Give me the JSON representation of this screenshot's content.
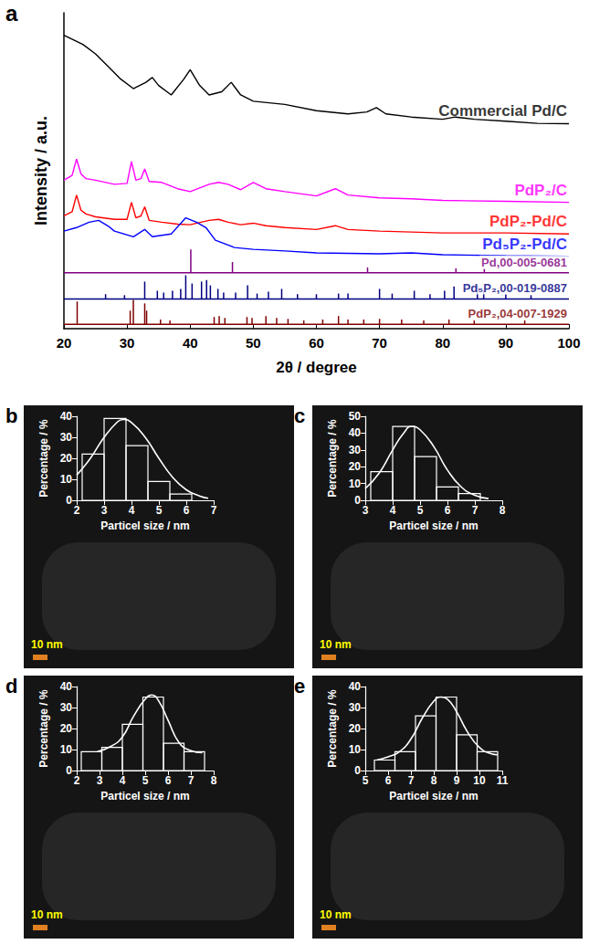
{
  "chart_data": [
    {
      "type": "line",
      "panel_label": "a",
      "xlabel": "2θ / degree",
      "ylabel": "Intensity / a.u.",
      "xlim": [
        20,
        100
      ],
      "xticks": [
        20,
        30,
        40,
        50,
        60,
        70,
        80,
        90,
        100
      ],
      "ylim": [
        0,
        100
      ],
      "tick_labels": "x",
      "series": [
        {
          "name": "Commercial Pd/C",
          "type": "line",
          "color": "#000000",
          "x": [
            20,
            23,
            25,
            27,
            29,
            31,
            33,
            34,
            35,
            37,
            39,
            40,
            41.5,
            43,
            45,
            46.5,
            48,
            50,
            55,
            60,
            65,
            68,
            69.5,
            71,
            75,
            80,
            82,
            85,
            90,
            95,
            100
          ],
          "values": [
            92.9,
            90,
            87,
            83,
            79,
            76,
            78,
            79.5,
            77,
            74,
            79,
            82,
            77,
            74,
            75,
            78,
            74,
            72,
            71,
            69,
            68,
            68.6,
            70,
            68,
            67,
            66.3,
            67,
            66.3,
            65.7,
            65,
            64.9
          ]
        },
        {
          "name": "PdP₂/C",
          "type": "line",
          "color": "#ff00ff",
          "x": [
            20,
            21.3,
            22,
            22.7,
            23.5,
            25,
            28,
            30,
            30.7,
            31.4,
            32.2,
            32.8,
            33.5,
            35.5,
            38,
            40,
            43,
            44.5,
            46,
            48,
            50,
            52,
            55,
            60,
            63,
            65,
            70,
            75,
            80,
            90,
            100
          ],
          "values": [
            47,
            48.5,
            53.7,
            49,
            47.5,
            47,
            45.7,
            46,
            52.9,
            47,
            47.5,
            50.6,
            46.6,
            46.3,
            44.3,
            43.4,
            45.7,
            46.3,
            45.7,
            44,
            46.3,
            44.3,
            43.4,
            42,
            44.3,
            42.3,
            41.4,
            41.1,
            40.6,
            40.3,
            40
          ]
        },
        {
          "name": "PdP₂-Pd/C",
          "type": "line",
          "color": "#ff0000",
          "x": [
            20,
            21.3,
            22,
            22.7,
            23.5,
            25,
            28,
            30,
            30.7,
            31.4,
            32.2,
            32.8,
            33.5,
            35.5,
            38,
            40,
            43,
            44.5,
            46,
            48,
            50,
            52,
            55,
            60,
            63,
            65,
            70,
            75,
            80,
            90,
            100
          ],
          "values": [
            35.7,
            37,
            42.3,
            37.5,
            36.3,
            35.4,
            34.6,
            34.6,
            40,
            35.1,
            35.7,
            38.6,
            34.3,
            33.7,
            33.1,
            32.9,
            34.3,
            34.6,
            33.7,
            32.9,
            33.4,
            32.6,
            32,
            31.4,
            32.6,
            31.4,
            30.9,
            30.6,
            30.3,
            30.3,
            30
          ]
        },
        {
          "name": "Pd₅P₂-Pd/C",
          "type": "line",
          "color": "#0000ff",
          "x": [
            20,
            22,
            24,
            25.5,
            27,
            28,
            31,
            32.8,
            34,
            37,
            39.3,
            41,
            42.5,
            44,
            47,
            50,
            55,
            60,
            70,
            75,
            80,
            90,
            100
          ],
          "values": [
            30.9,
            32,
            33.7,
            34.3,
            32.5,
            30.9,
            29.1,
            31.4,
            29.1,
            30,
            35.1,
            33.7,
            32,
            28,
            25.7,
            25.1,
            24.6,
            24,
            23.7,
            24,
            23.4,
            23.1,
            22.9
          ]
        },
        {
          "name": "Pd,00-005-0681",
          "type": "stick",
          "color": "#800080",
          "baseline": 17.7,
          "x": [
            40.1,
            46.7,
            68.1,
            82.1,
            86.6
          ],
          "values": [
            25.1,
            21.1,
            19.4,
            19.1,
            18.9
          ]
        },
        {
          "name": "Pd₅P₂,00-019-0887",
          "type": "stick",
          "color": "#000080",
          "baseline": 9.4,
          "x": [
            26.6,
            29.6,
            32.8,
            34.8,
            35.8,
            37.2,
            38.5,
            39.3,
            40.3,
            41.8,
            42.6,
            43.2,
            44.4,
            45.3,
            47.2,
            49.1,
            50.6,
            52.4,
            54.5,
            57,
            60,
            63.5,
            65,
            70,
            72,
            75.5,
            78,
            80.3,
            81.8,
            85.5,
            86.5,
            90,
            94
          ],
          "values": [
            10.9,
            10.6,
            14.9,
            12,
            11.4,
            12,
            12.6,
            16.9,
            14.3,
            14.9,
            15.4,
            13.7,
            12.6,
            11.4,
            11.4,
            13.7,
            11.1,
            11.7,
            12.6,
            10.9,
            10.9,
            11.1,
            11.1,
            12.6,
            11.1,
            12,
            10.9,
            12,
            13.4,
            13.7,
            12,
            10.9,
            10.6
          ]
        },
        {
          "name": "PdP₂,04-007-1929",
          "type": "stick",
          "color": "#800000",
          "baseline": 1.4,
          "x": [
            22.1,
            30.5,
            31,
            32.8,
            33.1,
            35.3,
            36.8,
            43.8,
            44.6,
            45.5,
            49,
            49.8,
            52,
            53.7,
            55.5,
            58,
            61,
            63.5,
            65,
            67.5,
            70,
            73.5,
            77,
            81,
            85,
            93
          ],
          "values": [
            8.6,
            5.7,
            9.1,
            8,
            5.7,
            2.9,
            2.6,
            3.7,
            4,
            3.4,
            3.7,
            3.4,
            4,
            3.4,
            3.1,
            2.6,
            2.9,
            4,
            2.9,
            2.9,
            3.1,
            2.9,
            2.6,
            2.9,
            2.6,
            2.6
          ]
        }
      ]
    },
    {
      "type": "histogram",
      "panel_label": "b",
      "xlabel": "Particel size / nm",
      "ylabel": "Percentage / %",
      "scale_bar": "10 nm",
      "color": "#ffffff",
      "xlim": [
        2,
        7
      ],
      "xticks": [
        2,
        3,
        4,
        5,
        6,
        7
      ],
      "ylim": [
        0,
        40
      ],
      "yticks": [
        0,
        10,
        20,
        30,
        40
      ],
      "bins": [
        2.2,
        3.0,
        3.8,
        4.6,
        5.4,
        6.2
      ],
      "values": [
        22,
        39,
        26,
        9,
        3
      ],
      "fit": {
        "x": [
          2.0,
          2.5,
          3.0,
          3.5,
          3.7,
          4.0,
          4.5,
          5.0,
          5.5,
          6.0,
          6.5,
          6.8
        ],
        "y": [
          12,
          20,
          30,
          37.5,
          38.5,
          37,
          30,
          20,
          11,
          5,
          2,
          1
        ]
      }
    },
    {
      "type": "histogram",
      "panel_label": "c",
      "xlabel": "Particel size / nm",
      "ylabel": "Percentage / %",
      "scale_bar": "10 nm",
      "color": "#ffffff",
      "xlim": [
        3,
        8
      ],
      "xticks": [
        3,
        4,
        5,
        6,
        7,
        8
      ],
      "ylim": [
        0,
        50
      ],
      "yticks": [
        0,
        10,
        20,
        30,
        40,
        50
      ],
      "bins": [
        3.2,
        4.0,
        4.8,
        5.6,
        6.4,
        7.2
      ],
      "values": [
        17,
        44,
        26,
        8,
        4
      ],
      "fit": {
        "x": [
          3.0,
          3.5,
          4.0,
          4.4,
          4.7,
          5.0,
          5.5,
          6.0,
          6.5,
          7.0,
          7.5
        ],
        "y": [
          7,
          16,
          30,
          40,
          44,
          42,
          32,
          18,
          8,
          3,
          1
        ]
      }
    },
    {
      "type": "histogram",
      "panel_label": "d",
      "xlabel": "Particel size / nm",
      "ylabel": "Percentage / %",
      "scale_bar": "10 nm",
      "color": "#ffffff",
      "xlim": [
        2,
        8
      ],
      "xticks": [
        2,
        3,
        4,
        5,
        6,
        7,
        8
      ],
      "ylim": [
        0,
        40
      ],
      "yticks": [
        0,
        10,
        20,
        30,
        40
      ],
      "bins": [
        2.2,
        3.1,
        4.0,
        4.9,
        5.8,
        6.7,
        7.6
      ],
      "values": [
        9,
        11,
        22,
        35,
        13,
        9
      ],
      "fit": {
        "x": [
          2.9,
          3.5,
          4.0,
          4.5,
          5.0,
          5.3,
          5.6,
          6.0,
          6.5,
          7.0,
          7.5
        ],
        "y": [
          9,
          11.5,
          16,
          26,
          34,
          36,
          33,
          24,
          13,
          9.5,
          8.5
        ]
      }
    },
    {
      "type": "histogram",
      "panel_label": "e",
      "xlabel": "Particel size / nm",
      "ylabel": "Percentage / %",
      "scale_bar": "10 nm",
      "color": "#ffffff",
      "xlim": [
        5,
        11
      ],
      "xticks": [
        5,
        6,
        7,
        8,
        9,
        10,
        11
      ],
      "ylim": [
        0,
        40
      ],
      "yticks": [
        0,
        10,
        20,
        30,
        40
      ],
      "bins": [
        5.4,
        6.3,
        7.2,
        8.1,
        9.0,
        9.9,
        10.8
      ],
      "values": [
        5,
        9,
        26,
        35,
        17,
        9
      ],
      "fit": {
        "x": [
          5.5,
          6.0,
          6.5,
          7.0,
          7.5,
          8.0,
          8.3,
          8.6,
          9.0,
          9.5,
          10.0,
          10.5,
          10.8
        ],
        "y": [
          5,
          6.5,
          9,
          15,
          25,
          33,
          35,
          34,
          28,
          18,
          11,
          8,
          7.5
        ]
      }
    }
  ]
}
